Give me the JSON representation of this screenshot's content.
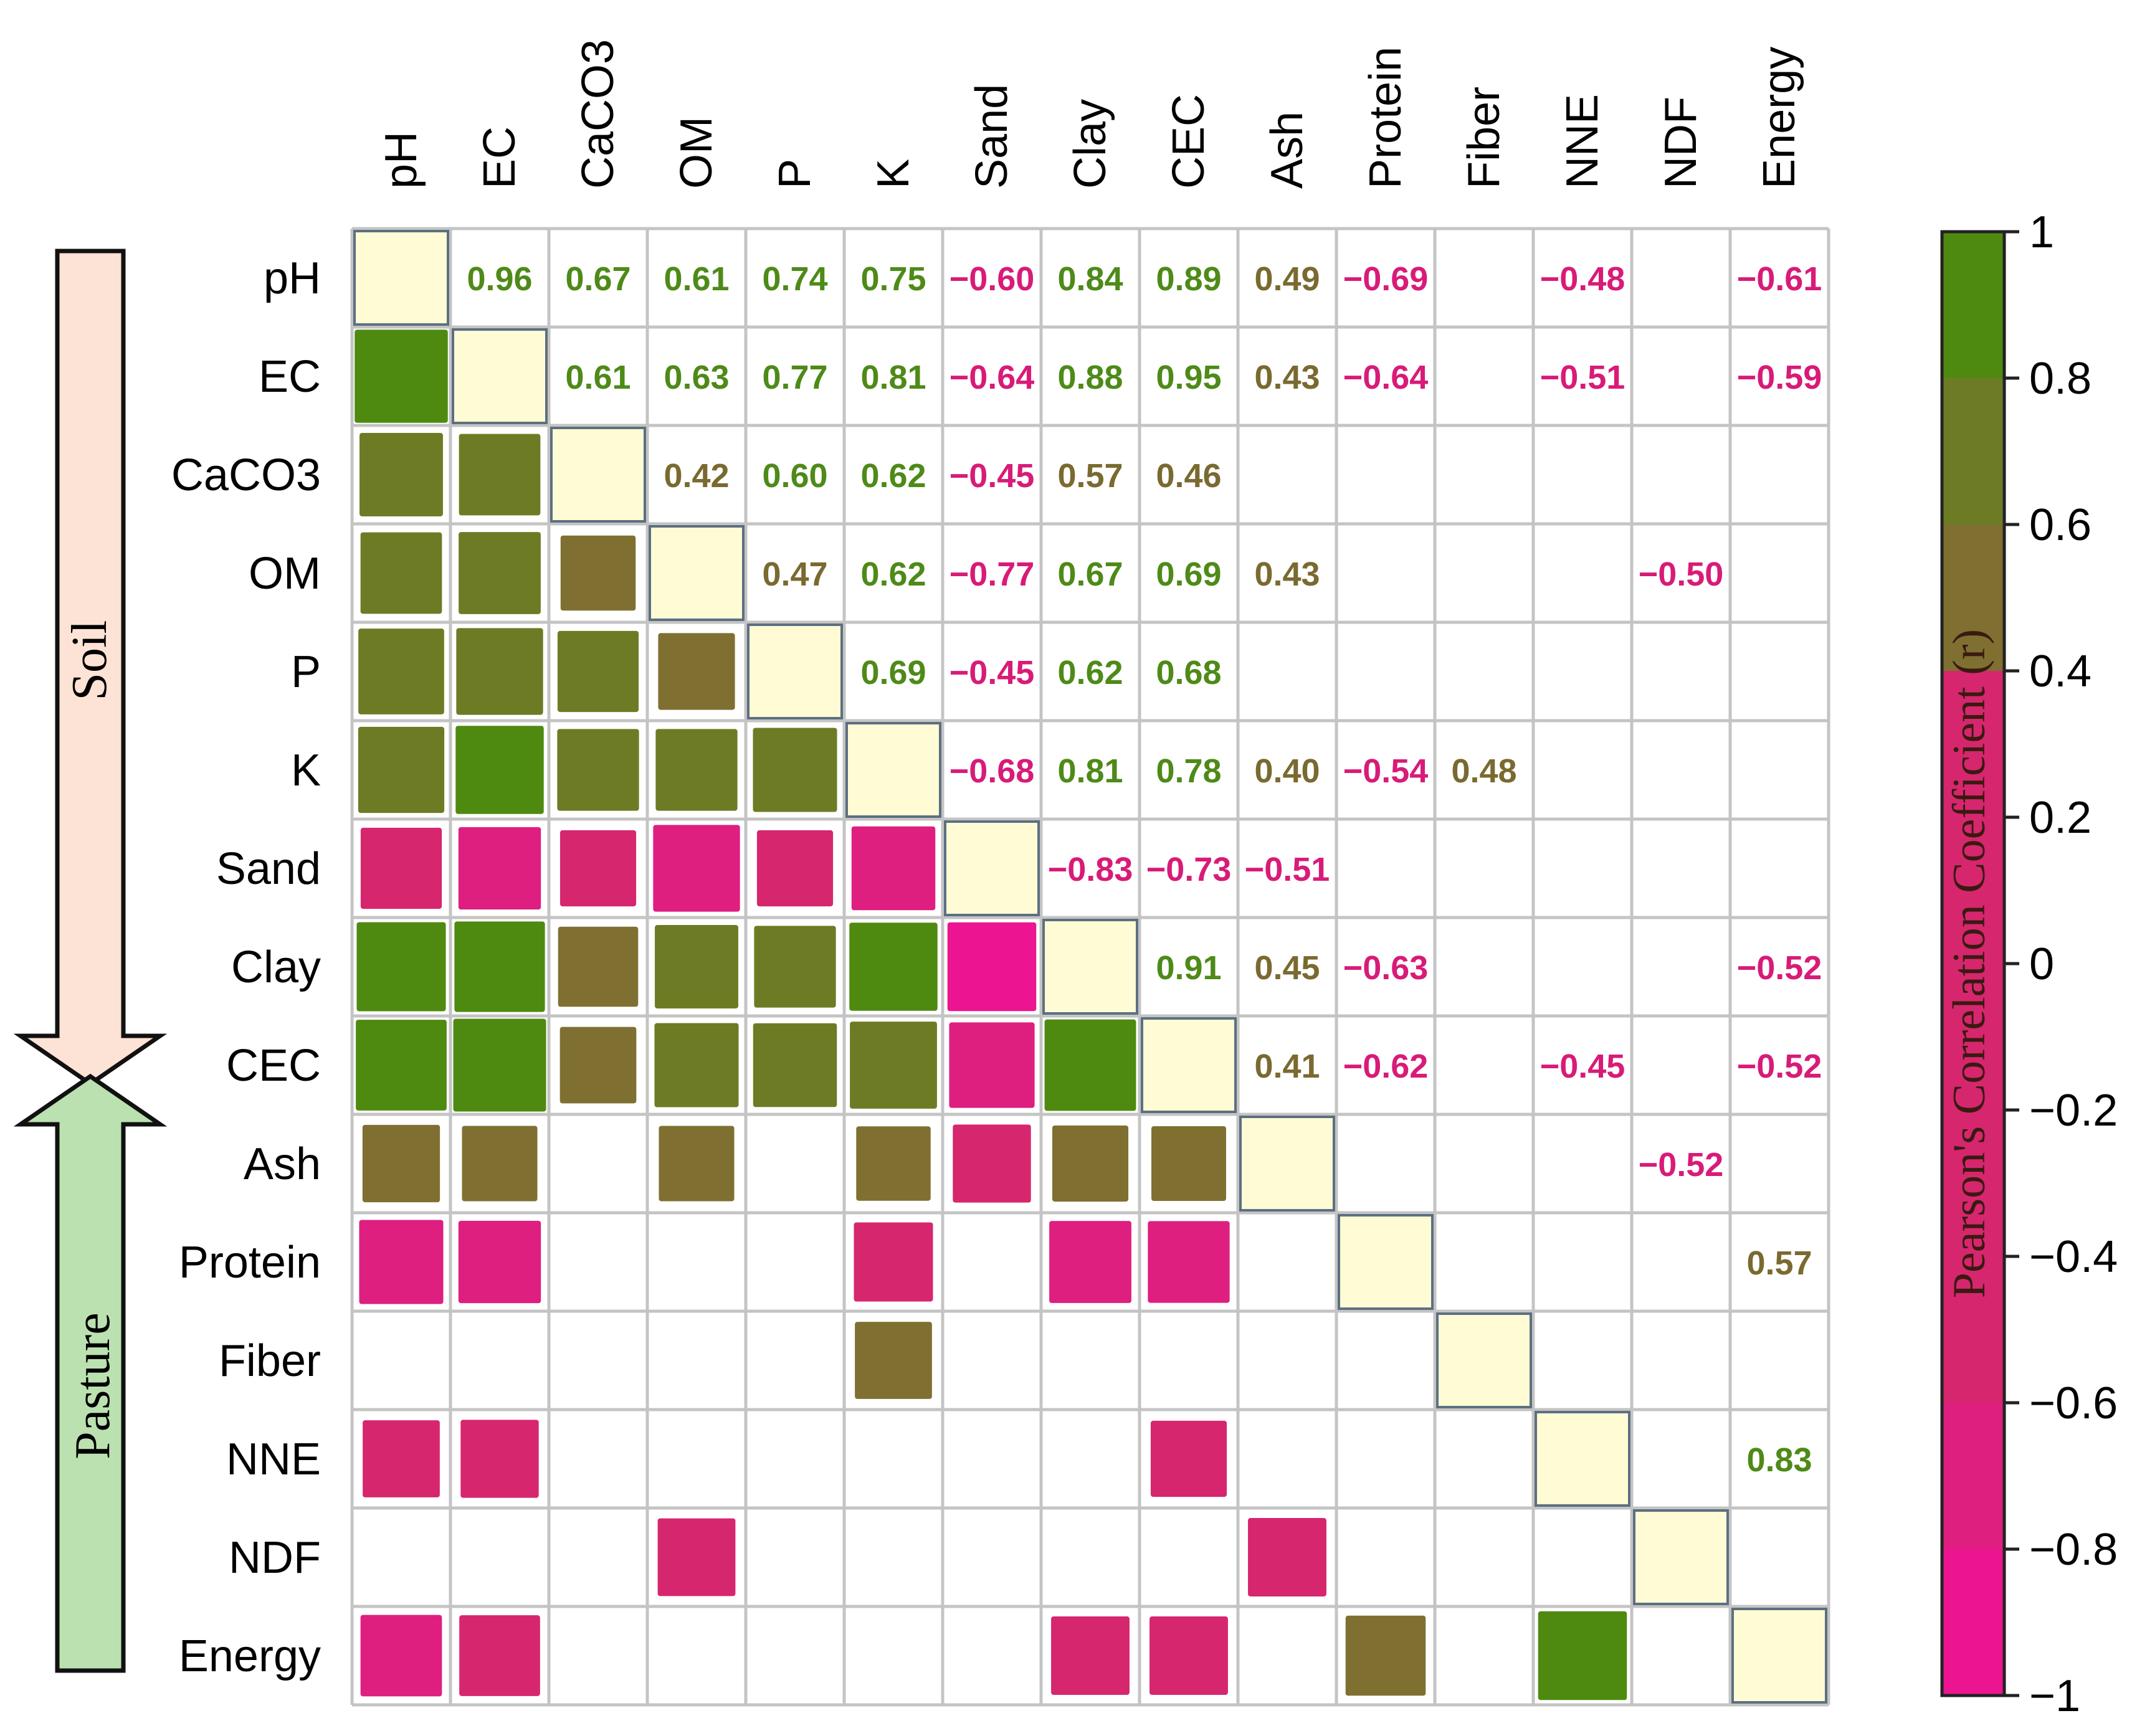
{
  "chart_data": {
    "type": "heatmap",
    "title": "",
    "variables": [
      "pH",
      "EC",
      "CaCO3",
      "OM",
      "P",
      "K",
      "Sand",
      "Clay",
      "CEC",
      "Ash",
      "Protein",
      "Fiber",
      "NNE",
      "NDF",
      "Energy"
    ],
    "groups": [
      {
        "name": "Soil",
        "members": [
          "pH",
          "EC",
          "CaCO3",
          "OM",
          "P",
          "K",
          "Sand",
          "Clay",
          "CEC"
        ]
      },
      {
        "name": "Pasture",
        "members": [
          "Ash",
          "Protein",
          "Fiber",
          "NNE",
          "NDF",
          "Energy"
        ]
      }
    ],
    "colorbar": {
      "label": "Pearson's Correlation Coefficient (r)",
      "range": [
        -1,
        1
      ],
      "ticks": [
        1,
        0.8,
        0.6,
        0.4,
        0.2,
        0,
        -0.2,
        -0.4,
        -0.6,
        -0.8,
        -1
      ],
      "tick_labels": [
        "1",
        "0.8",
        "0.6",
        "0.4",
        "0.2",
        "0",
        "−0.2",
        "−0.4",
        "−0.6",
        "−0.8",
        "−1"
      ],
      "bands": [
        {
          "from": 0.8,
          "to": 1.0,
          "color": "#4f8a10"
        },
        {
          "from": 0.6,
          "to": 0.8,
          "color": "#6d7c24"
        },
        {
          "from": 0.4,
          "to": 0.6,
          "color": "#7f7032"
        },
        {
          "from": -0.6,
          "to": 0.4,
          "color": "#d6266e"
        },
        {
          "from": -0.8,
          "to": -0.6,
          "color": "#de1f80"
        },
        {
          "from": -1.0,
          "to": -0.8,
          "color": "#ec1490"
        }
      ]
    },
    "diagonal_color": "#fffbd4",
    "pairs": [
      {
        "a": "pH",
        "b": "EC",
        "r": 0.96,
        "label": "0.96"
      },
      {
        "a": "pH",
        "b": "CaCO3",
        "r": 0.67,
        "label": "0.67"
      },
      {
        "a": "pH",
        "b": "OM",
        "r": 0.61,
        "label": "0.61"
      },
      {
        "a": "pH",
        "b": "P",
        "r": 0.74,
        "label": "0.74"
      },
      {
        "a": "pH",
        "b": "K",
        "r": 0.75,
        "label": "0.75"
      },
      {
        "a": "pH",
        "b": "Sand",
        "r": -0.6,
        "label": "−0.60"
      },
      {
        "a": "pH",
        "b": "Clay",
        "r": 0.84,
        "label": "0.84"
      },
      {
        "a": "pH",
        "b": "CEC",
        "r": 0.89,
        "label": "0.89"
      },
      {
        "a": "pH",
        "b": "Ash",
        "r": 0.49,
        "label": "0.49"
      },
      {
        "a": "pH",
        "b": "Protein",
        "r": -0.69,
        "label": "−0.69"
      },
      {
        "a": "pH",
        "b": "NNE",
        "r": -0.48,
        "label": "−0.48"
      },
      {
        "a": "pH",
        "b": "Energy",
        "r": -0.61,
        "label": "−0.61"
      },
      {
        "a": "EC",
        "b": "CaCO3",
        "r": 0.61,
        "label": "0.61"
      },
      {
        "a": "EC",
        "b": "OM",
        "r": 0.63,
        "label": "0.63"
      },
      {
        "a": "EC",
        "b": "P",
        "r": 0.77,
        "label": "0.77"
      },
      {
        "a": "EC",
        "b": "K",
        "r": 0.81,
        "label": "0.81"
      },
      {
        "a": "EC",
        "b": "Sand",
        "r": -0.64,
        "label": "−0.64"
      },
      {
        "a": "EC",
        "b": "Clay",
        "r": 0.88,
        "label": "0.88"
      },
      {
        "a": "EC",
        "b": "CEC",
        "r": 0.95,
        "label": "0.95"
      },
      {
        "a": "EC",
        "b": "Ash",
        "r": 0.43,
        "label": "0.43"
      },
      {
        "a": "EC",
        "b": "Protein",
        "r": -0.64,
        "label": "−0.64"
      },
      {
        "a": "EC",
        "b": "NNE",
        "r": -0.51,
        "label": "−0.51"
      },
      {
        "a": "EC",
        "b": "Energy",
        "r": -0.59,
        "label": "−0.59"
      },
      {
        "a": "CaCO3",
        "b": "OM",
        "r": 0.42,
        "label": "0.42"
      },
      {
        "a": "CaCO3",
        "b": "P",
        "r": 0.6,
        "label": "0.60"
      },
      {
        "a": "CaCO3",
        "b": "K",
        "r": 0.62,
        "label": "0.62"
      },
      {
        "a": "CaCO3",
        "b": "Sand",
        "r": -0.45,
        "label": "−0.45"
      },
      {
        "a": "CaCO3",
        "b": "Clay",
        "r": 0.57,
        "label": "0.57"
      },
      {
        "a": "CaCO3",
        "b": "CEC",
        "r": 0.46,
        "label": "0.46"
      },
      {
        "a": "OM",
        "b": "P",
        "r": 0.47,
        "label": "0.47"
      },
      {
        "a": "OM",
        "b": "K",
        "r": 0.62,
        "label": "0.62"
      },
      {
        "a": "OM",
        "b": "Sand",
        "r": -0.77,
        "label": "−0.77"
      },
      {
        "a": "OM",
        "b": "Clay",
        "r": 0.67,
        "label": "0.67"
      },
      {
        "a": "OM",
        "b": "CEC",
        "r": 0.69,
        "label": "0.69"
      },
      {
        "a": "OM",
        "b": "Ash",
        "r": 0.43,
        "label": "0.43"
      },
      {
        "a": "OM",
        "b": "NDF",
        "r": -0.5,
        "label": "−0.50"
      },
      {
        "a": "P",
        "b": "K",
        "r": 0.69,
        "label": "0.69"
      },
      {
        "a": "P",
        "b": "Sand",
        "r": -0.45,
        "label": "−0.45"
      },
      {
        "a": "P",
        "b": "Clay",
        "r": 0.62,
        "label": "0.62"
      },
      {
        "a": "P",
        "b": "CEC",
        "r": 0.68,
        "label": "0.68"
      },
      {
        "a": "K",
        "b": "Sand",
        "r": -0.68,
        "label": "−0.68"
      },
      {
        "a": "K",
        "b": "Clay",
        "r": 0.81,
        "label": "0.81"
      },
      {
        "a": "K",
        "b": "CEC",
        "r": 0.78,
        "label": "0.78"
      },
      {
        "a": "K",
        "b": "Ash",
        "r": 0.4,
        "label": "0.40"
      },
      {
        "a": "K",
        "b": "Protein",
        "r": -0.54,
        "label": "−0.54"
      },
      {
        "a": "K",
        "b": "Fiber",
        "r": 0.48,
        "label": "0.48"
      },
      {
        "a": "Sand",
        "b": "Clay",
        "r": -0.83,
        "label": "−0.83"
      },
      {
        "a": "Sand",
        "b": "CEC",
        "r": -0.73,
        "label": "−0.73"
      },
      {
        "a": "Sand",
        "b": "Ash",
        "r": -0.51,
        "label": "−0.51"
      },
      {
        "a": "Clay",
        "b": "CEC",
        "r": 0.91,
        "label": "0.91"
      },
      {
        "a": "Clay",
        "b": "Ash",
        "r": 0.45,
        "label": "0.45"
      },
      {
        "a": "Clay",
        "b": "Protein",
        "r": -0.63,
        "label": "−0.63"
      },
      {
        "a": "Clay",
        "b": "Energy",
        "r": -0.52,
        "label": "−0.52"
      },
      {
        "a": "CEC",
        "b": "Ash",
        "r": 0.41,
        "label": "0.41"
      },
      {
        "a": "CEC",
        "b": "Protein",
        "r": -0.62,
        "label": "−0.62"
      },
      {
        "a": "CEC",
        "b": "NNE",
        "r": -0.45,
        "label": "−0.45"
      },
      {
        "a": "CEC",
        "b": "Energy",
        "r": -0.52,
        "label": "−0.52"
      },
      {
        "a": "Ash",
        "b": "NDF",
        "r": -0.52,
        "label": "−0.52"
      },
      {
        "a": "Protein",
        "b": "Energy",
        "r": 0.57,
        "label": "0.57"
      },
      {
        "a": "NNE",
        "b": "Energy",
        "r": 0.83,
        "label": "0.83"
      }
    ]
  }
}
